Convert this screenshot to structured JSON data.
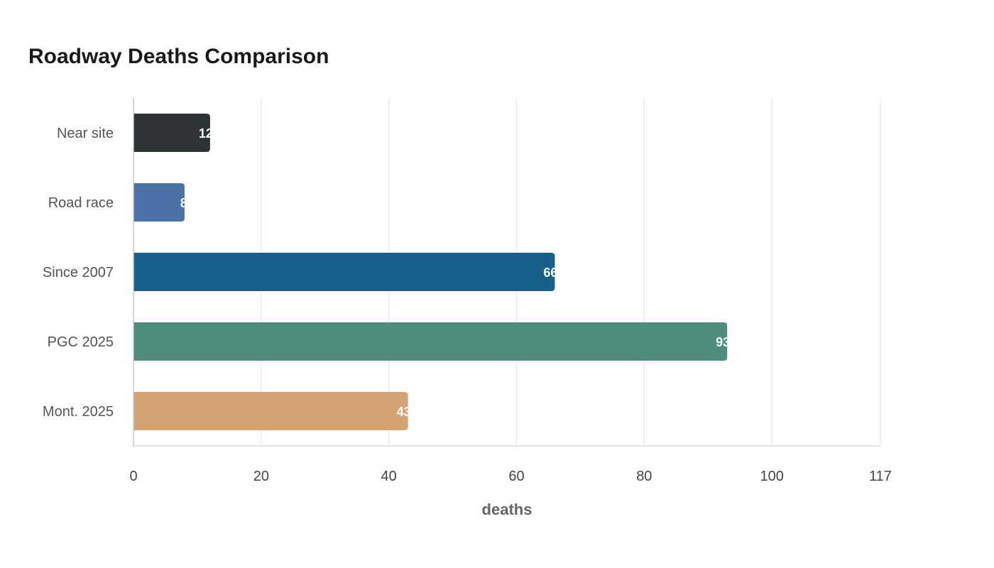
{
  "chart_data": {
    "type": "bar",
    "orientation": "horizontal",
    "title": "Roadway Deaths Comparison",
    "xlabel": "deaths",
    "ylabel": "",
    "categories": [
      "Near site",
      "Road race",
      "Since 2007",
      "PGC 2025",
      "Mont. 2025"
    ],
    "values": [
      12,
      8,
      66,
      93,
      43
    ],
    "colors": [
      "#2e3436",
      "#4a72a6",
      "#17608a",
      "#4e8c7c",
      "#d4a373"
    ],
    "xlim": [
      0,
      117
    ],
    "xticks": [
      0,
      20,
      40,
      60,
      80,
      100,
      117
    ],
    "grid": true,
    "legend": "none"
  }
}
